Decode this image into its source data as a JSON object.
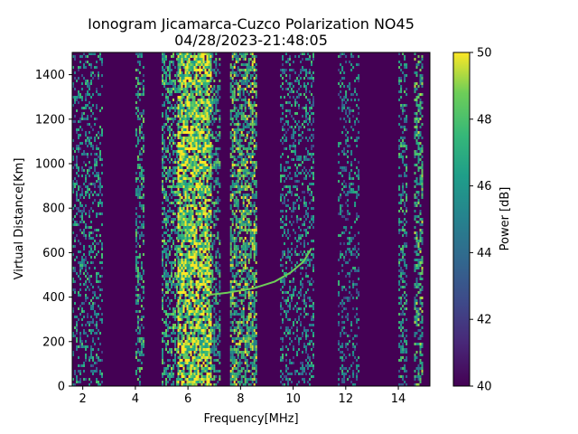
{
  "chart_data": {
    "type": "heatmap",
    "title": "Ionogram Jicamarca-Cuzco Polarization NO45",
    "subtitle": "04/28/2023-21:48:05",
    "xlabel": "Frequency[MHz]",
    "ylabel": "Virtual Distance[Km]",
    "xlim": [
      1.6,
      15.2
    ],
    "ylim": [
      0,
      1500
    ],
    "x_ticks": [
      2,
      4,
      6,
      8,
      10,
      12,
      14
    ],
    "y_ticks": [
      0,
      200,
      400,
      600,
      800,
      1000,
      1200,
      1400
    ],
    "colorbar": {
      "label": "Power [dB]",
      "range": [
        40,
        50
      ],
      "ticks": [
        40,
        42,
        44,
        46,
        48,
        50
      ],
      "colormap": "viridis"
    },
    "bands": [
      {
        "f0": 1.6,
        "f1": 2.7,
        "intensity": 0.35
      },
      {
        "f0": 4.0,
        "f1": 4.3,
        "intensity": 0.5
      },
      {
        "f0": 5.0,
        "f1": 5.6,
        "intensity": 0.55
      },
      {
        "f0": 5.6,
        "f1": 6.9,
        "intensity": 0.92
      },
      {
        "f0": 6.9,
        "f1": 7.2,
        "intensity": 0.5
      },
      {
        "f0": 7.6,
        "f1": 8.6,
        "intensity": 0.7
      },
      {
        "f0": 9.5,
        "f1": 10.8,
        "intensity": 0.35
      },
      {
        "f0": 11.7,
        "f1": 12.5,
        "intensity": 0.3
      },
      {
        "f0": 14.0,
        "f1": 14.3,
        "intensity": 0.45
      },
      {
        "f0": 14.6,
        "f1": 14.9,
        "intensity": 0.6
      }
    ],
    "trace": [
      {
        "f": 6.8,
        "d": 410
      },
      {
        "f": 7.5,
        "d": 420
      },
      {
        "f": 8.5,
        "d": 440
      },
      {
        "f": 9.3,
        "d": 470
      },
      {
        "f": 9.9,
        "d": 510
      },
      {
        "f": 10.4,
        "d": 560
      },
      {
        "f": 10.7,
        "d": 620
      }
    ]
  }
}
